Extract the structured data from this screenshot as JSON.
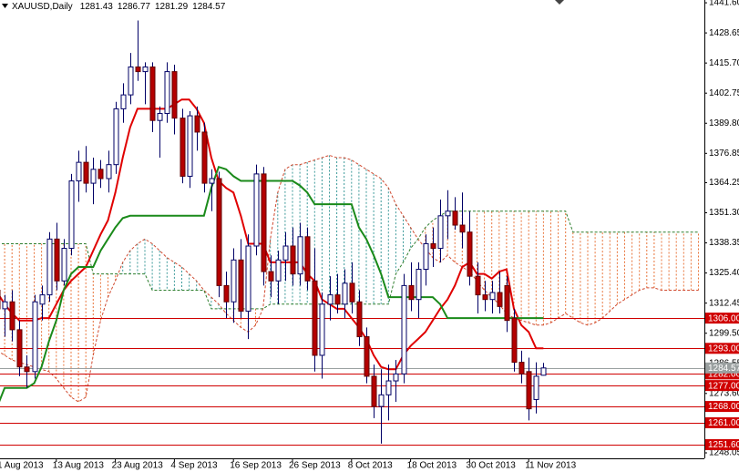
{
  "chart_data": {
    "type": "candlestick",
    "title": "XAUUSD,Daily",
    "categories": [
      "1 Aug 2013",
      null,
      null,
      null,
      null,
      null,
      null,
      null,
      "13 Aug 2013",
      null,
      null,
      null,
      null,
      null,
      null,
      null,
      "23 Aug 2013",
      null,
      null,
      null,
      null,
      null,
      null,
      null,
      "4 Sep 2013",
      null,
      null,
      null,
      null,
      null,
      null,
      null,
      "16 Sep 2013",
      null,
      null,
      null,
      null,
      null,
      null,
      null,
      "26 Sep 2013",
      null,
      null,
      null,
      null,
      null,
      null,
      null,
      "8 Oct 2013",
      null,
      null,
      null,
      null,
      null,
      null,
      null,
      "18 Oct 2013",
      null,
      null,
      null,
      null,
      null,
      null,
      null,
      "30 Oct 2013",
      null,
      null,
      null,
      null,
      null,
      null,
      null,
      "11 Nov 2013",
      null,
      null,
      null,
      null,
      null,
      null,
      null,
      null,
      null,
      null,
      null,
      null,
      null,
      null,
      null,
      null,
      null,
      null,
      null,
      null,
      null,
      null,
      null
    ],
    "open": [
      1318,
      1310,
      1313,
      1301,
      1285,
      1283,
      1312,
      1316,
      1340,
      1322,
      1336,
      1365,
      1373,
      1364,
      1370,
      1366,
      1372,
      1396,
      1402,
      1414,
      1412,
      1414,
      1391,
      1394,
      1412,
      1392,
      1367,
      1393,
      1386,
      1364,
      1366,
      1320,
      1313,
      1331,
      1309,
      1337,
      1368,
      1326,
      1322,
      1331,
      1337,
      1325,
      1341,
      1322,
      1290,
      1312,
      1316,
      1312,
      1321,
      1313,
      1298,
      1281,
      1268,
      1273,
      1279,
      1282,
      1320,
      1314,
      1327,
      1338,
      1336,
      1350,
      1352,
      1346,
      1343,
      1324,
      1316,
      1314,
      1317,
      1320,
      1306,
      1287,
      1283,
      1271,
      1281.43,
      null,
      null,
      null,
      null,
      null,
      null,
      null,
      null,
      null,
      null,
      null,
      null,
      null,
      null,
      null,
      null,
      null,
      null,
      null,
      null,
      null
    ],
    "high": [
      1322,
      1316,
      1318,
      1305,
      1290,
      1316,
      1320,
      1343,
      1347,
      1340,
      1368,
      1378,
      1380,
      1375,
      1374,
      1378,
      1399,
      1407,
      1420,
      1434,
      1416,
      1416,
      1397,
      1416,
      1415,
      1396,
      1395,
      1397,
      1390,
      1370,
      1369,
      1326,
      1336,
      1340,
      1342,
      1372,
      1371,
      1333,
      1335,
      1343,
      1345,
      1347,
      1345,
      1336,
      1317,
      1324,
      1325,
      1327,
      1330,
      1318,
      1302,
      1286,
      1284,
      1286,
      1288,
      1325,
      1330,
      1330,
      1342,
      1345,
      1357,
      1361,
      1358,
      1360,
      1352,
      1330,
      1322,
      1322,
      1326,
      1324,
      1310,
      1292,
      1289,
      1287,
      1286.77,
      null,
      null,
      null,
      null,
      null,
      null,
      null,
      null,
      null,
      null,
      null,
      null,
      null,
      null,
      null,
      null,
      null,
      null,
      null,
      null,
      null
    ],
    "low": [
      1306,
      1298,
      1296,
      1281,
      1276,
      1280,
      1305,
      1313,
      1318,
      1320,
      1333,
      1356,
      1360,
      1355,
      1362,
      1360,
      1368,
      1390,
      1398,
      1408,
      1398,
      1386,
      1375,
      1390,
      1385,
      1364,
      1362,
      1378,
      1360,
      1352,
      1315,
      1306,
      1304,
      1306,
      1297,
      1333,
      1320,
      1315,
      1312,
      1322,
      1320,
      1320,
      1318,
      1283,
      1280,
      1305,
      1308,
      1306,
      1308,
      1294,
      1278,
      1263,
      1252,
      1262,
      1270,
      1278,
      1309,
      1306,
      1320,
      1328,
      1330,
      1340,
      1344,
      1336,
      1320,
      1308,
      1309,
      1308,
      1308,
      1300,
      1283,
      1278,
      1262,
      1265,
      1281.29,
      null,
      null,
      null,
      null,
      null,
      null,
      null,
      null,
      null,
      null,
      null,
      null,
      null,
      null,
      null,
      null,
      null,
      null,
      null,
      null,
      null
    ],
    "close": [
      1310,
      1313,
      1301,
      1285,
      1283,
      1313,
      1316,
      1340,
      1322,
      1336,
      1365,
      1373,
      1364,
      1370,
      1366,
      1372,
      1396,
      1402,
      1414,
      1412,
      1414,
      1391,
      1394,
      1412,
      1392,
      1367,
      1393,
      1386,
      1364,
      1366,
      1320,
      1313,
      1331,
      1309,
      1337,
      1368,
      1326,
      1322,
      1331,
      1337,
      1325,
      1341,
      1322,
      1290,
      1312,
      1316,
      1312,
      1321,
      1313,
      1298,
      1281,
      1268,
      1273,
      1279,
      1282,
      1320,
      1314,
      1327,
      1338,
      1336,
      1350,
      1352,
      1346,
      1343,
      1324,
      1316,
      1314,
      1317,
      1311,
      1305,
      1287,
      1282,
      1267,
      1281,
      1284.57,
      null,
      null,
      null,
      null,
      null,
      null,
      null,
      null,
      null,
      null,
      null,
      null,
      null,
      null,
      null,
      null,
      null,
      null,
      null,
      null,
      null
    ],
    "bull_color": "#ffffff",
    "bear_color": "#b40000",
    "outline_color": "#000066",
    "lines": [
      {
        "color": "#e00000",
        "values": [
          1317,
          1312,
          1308,
          1305,
          1305,
          1305,
          1306,
          1306,
          1312,
          1318,
          1322,
          1325,
          1328,
          1335,
          1342,
          1348,
          1360,
          1375,
          1388,
          1396,
          1396,
          1396,
          1396,
          1396,
          1398,
          1400,
          1400,
          1396,
          1390,
          1375,
          1365,
          1362,
          1360,
          1350,
          1338,
          1338,
          1338,
          1330,
          1330,
          1330,
          1330,
          1330,
          1325,
          1322,
          1314,
          1312,
          1310,
          1310,
          1306,
          1302,
          1297,
          1290,
          1285,
          1284,
          1284,
          1290,
          1294,
          1297,
          1300,
          1305,
          1310,
          1314,
          1320,
          1328,
          1330,
          1325,
          1325,
          1323,
          1326,
          1327,
          1310,
          1303,
          1300,
          1293,
          1293,
          null,
          null,
          null,
          null,
          null,
          null,
          null,
          null,
          null,
          null,
          null,
          null,
          null,
          null,
          null,
          null,
          null,
          null,
          null,
          null,
          null
        ]
      },
      {
        "color": "#1a8a1a",
        "values": [
          1268,
          1276,
          1276,
          1276,
          1276,
          1278,
          1285,
          1296,
          1305,
          1318,
          1325,
          1328,
          1328,
          1328,
          1335,
          1340,
          1345,
          1349,
          1350,
          1350,
          1350,
          1350,
          1350,
          1350,
          1350,
          1350,
          1350,
          1350,
          1350,
          1362,
          1371,
          1370,
          1367,
          1365,
          1365,
          1365,
          1365,
          1365,
          1365,
          1365,
          1365,
          1363,
          1360,
          1355,
          1355,
          1355,
          1355,
          1355,
          1355,
          1345,
          1340,
          1333,
          1325,
          1315,
          1315,
          1315,
          1315,
          1315,
          1315,
          1315,
          1312,
          1306,
          1306,
          1306,
          1306,
          1306,
          1306,
          1306,
          1306,
          1306,
          1306,
          1306,
          1306,
          1306,
          1306,
          null,
          null,
          null,
          null,
          null,
          null,
          null,
          null,
          null,
          null,
          null,
          null,
          null,
          null,
          null,
          null,
          null,
          null,
          null,
          null,
          null
        ]
      }
    ],
    "cloud": {
      "span_a": [
        1292,
        1290,
        1288,
        1287,
        1286,
        1285,
        1284,
        1283,
        1280,
        1276,
        1272,
        1270,
        1272,
        1290,
        1305,
        1315,
        1322,
        1330,
        1335,
        1338,
        1340,
        1338,
        1335,
        1332,
        1330,
        1328,
        1325,
        1322,
        1318,
        1315,
        1312,
        1308,
        1305,
        1302,
        1300,
        1303,
        1310,
        1340,
        1360,
        1370,
        1372,
        1372,
        1373,
        1374,
        1375,
        1376,
        1375,
        1375,
        1374,
        1372,
        1370,
        1368,
        1366,
        1362,
        1355,
        1350,
        1345,
        1340,
        1336,
        1332,
        1330,
        1333,
        1330,
        1328,
        1326,
        1322,
        1318,
        1315,
        1312,
        1308,
        1306,
        1305,
        1304,
        1303,
        1303,
        1304,
        1306,
        1308,
        1306,
        1304,
        1303,
        1304,
        1306,
        1309,
        1312,
        1314,
        1316,
        1318,
        1319,
        1319,
        1318,
        1318,
        1318,
        1318,
        1318,
        1318
      ],
      "span_b": [
        1338,
        1338,
        1338,
        1338,
        1338,
        1338,
        1338,
        1338,
        1338,
        1338,
        1338,
        1338,
        1338,
        1325,
        1325,
        1325,
        1325,
        1325,
        1325,
        1325,
        1325,
        1318,
        1318,
        1318,
        1318,
        1318,
        1318,
        1318,
        1318,
        1310,
        1310,
        1310,
        1310,
        1310,
        1310,
        1310,
        1310,
        1312,
        1312,
        1312,
        1312,
        1312,
        1312,
        1312,
        1312,
        1312,
        1312,
        1312,
        1312,
        1312,
        1312,
        1312,
        1312,
        1312,
        1325,
        1330,
        1336,
        1340,
        1345,
        1348,
        1350,
        1352,
        1352,
        1352,
        1352,
        1352,
        1352,
        1352,
        1352,
        1352,
        1352,
        1352,
        1352,
        1352,
        1352,
        1352,
        1352,
        1352,
        1343,
        1343,
        1343,
        1343,
        1343,
        1343,
        1343,
        1343,
        1343,
        1343,
        1343,
        1343,
        1343,
        1343,
        1343,
        1343,
        1343,
        1343
      ],
      "up_color": "#3c9a9a",
      "down_color": "#e8743b",
      "a_color": "#d04a30",
      "b_color": "#2f7f2f"
    },
    "levels": [
      {
        "value": 1306,
        "label": "1306.00"
      },
      {
        "value": 1293,
        "label": "1293.00"
      },
      {
        "value": 1282,
        "label": "1282.00"
      },
      {
        "value": 1277,
        "label": "1277.00"
      },
      {
        "value": 1268,
        "label": "1268.00"
      },
      {
        "value": 1261,
        "label": "1261.00"
      },
      {
        "value": 1251.6,
        "label": "1251.60"
      }
    ],
    "level_color": "#d00000",
    "current_color": "#9aa0a0",
    "ylim": [
      1245.7,
      1442.8
    ],
    "yticks": [
      {
        "value": 1441.6,
        "label": "1441.60"
      },
      1428.65,
      {
        "value": 1415.7,
        "label": "1415.70"
      },
      1402.75,
      {
        "value": 1389.8,
        "label": "1389.80"
      },
      1376.85,
      1364.25,
      {
        "value": 1351.3,
        "label": "1351.30"
      },
      1338.35,
      {
        "value": 1325.4,
        "label": "1325.40"
      },
      1312.45,
      {
        "value": 1299.5,
        "label": "1299.50"
      },
      1286.55,
      {
        "value": 1273.6,
        "label": "1273.60"
      },
      1248.05
    ],
    "grid": false
  }
}
